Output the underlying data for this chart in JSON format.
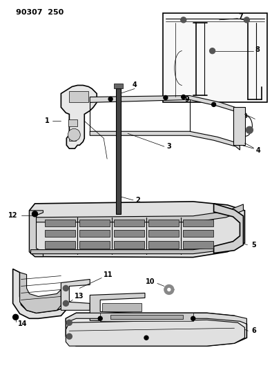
{
  "title": "90307  250",
  "bg_color": "#ffffff",
  "lc": "#000000",
  "fig_width": 3.94,
  "fig_height": 5.33,
  "dpi": 100
}
